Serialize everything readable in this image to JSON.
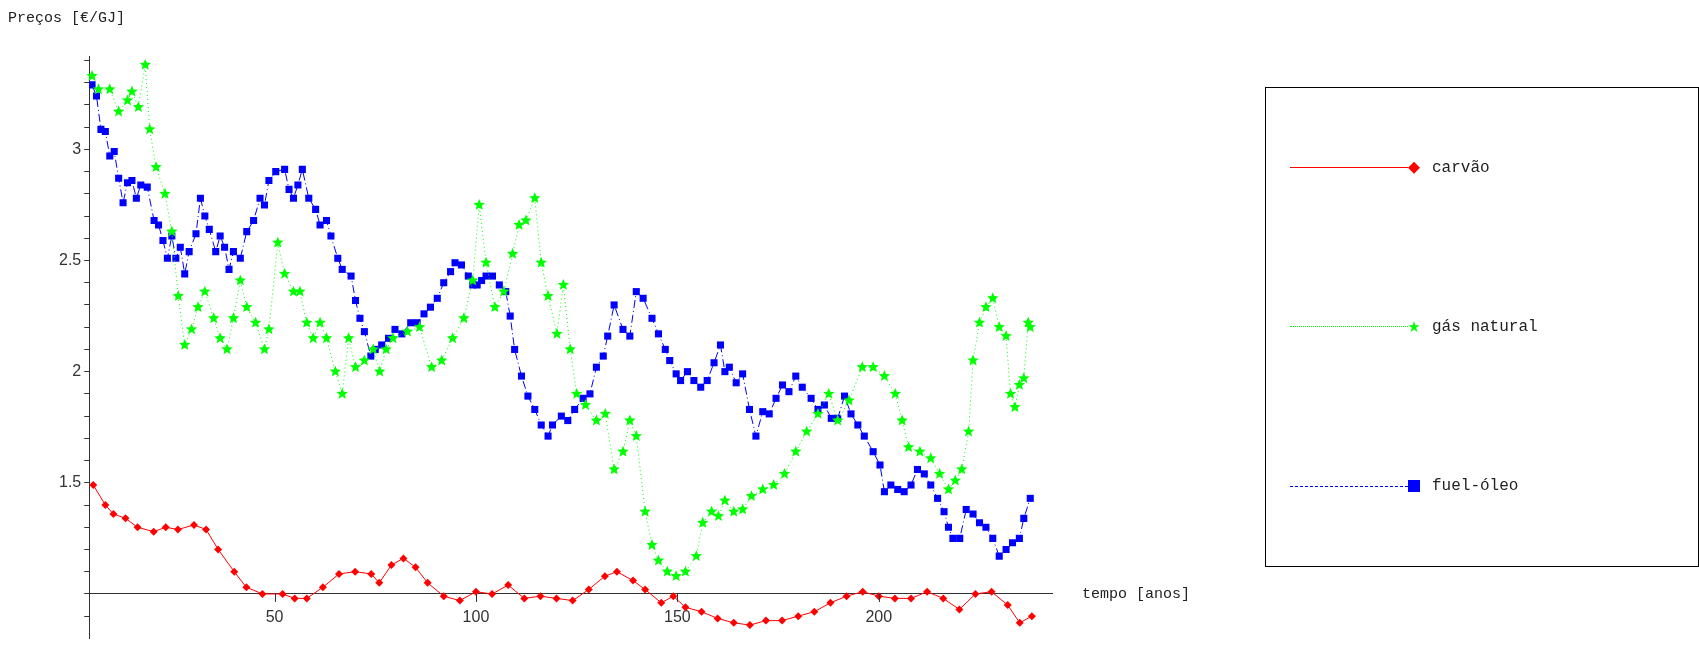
{
  "chart_data": {
    "type": "line",
    "xlabel": "tempo [anos]",
    "ylabel": "Preços [€/GJ]",
    "legend": "right",
    "xlim": [
      4,
      243
    ],
    "ylim": [
      0.8,
      3.42
    ],
    "xticks": [
      50,
      100,
      150,
      200
    ],
    "yticks": [
      {
        "value": 0.9,
        "label": null
      },
      {
        "value": 1,
        "label": null
      },
      {
        "value": 1.1,
        "label": null
      },
      {
        "value": 1.2,
        "label": null
      },
      {
        "value": 1.3,
        "label": null
      },
      {
        "value": 1.4,
        "label": null
      },
      1.5,
      {
        "value": 1.6,
        "label": null
      },
      {
        "value": 1.7,
        "label": null
      },
      {
        "value": 1.8,
        "label": null
      },
      {
        "value": 1.9,
        "label": null
      },
      2,
      {
        "value": 2.1,
        "label": null
      },
      {
        "value": 2.2,
        "label": null
      },
      {
        "value": 2.3,
        "label": null
      },
      {
        "value": 2.4,
        "label": null
      },
      2.5,
      {
        "value": 2.6,
        "label": null
      },
      {
        "value": 2.7,
        "label": null
      },
      {
        "value": 2.8,
        "label": null
      },
      {
        "value": 2.9,
        "label": null
      },
      3,
      {
        "value": 3.1,
        "label": null
      },
      {
        "value": 3.2,
        "label": null
      },
      {
        "value": 3.3,
        "label": null
      },
      {
        "value": 3.4,
        "label": null
      }
    ],
    "series": [
      {
        "name": "carvão",
        "color": "#ff0000",
        "marker": "diamond",
        "line_style": "solid",
        "x": [
          5,
          8,
          10,
          13,
          16,
          20,
          23,
          26,
          30,
          33,
          36,
          40,
          43,
          47,
          52,
          55,
          58,
          62,
          66,
          70,
          74,
          76,
          79,
          82,
          85,
          88,
          92,
          96,
          100,
          104,
          108,
          112,
          116,
          120,
          124,
          128,
          132,
          135,
          139,
          142,
          146,
          149,
          152,
          156,
          160,
          164,
          168,
          172,
          176,
          180,
          184,
          188,
          192,
          196,
          200,
          204,
          208,
          212,
          216,
          220,
          224,
          228,
          232,
          235,
          238
        ],
        "values": [
          1.49,
          1.4,
          1.36,
          1.34,
          1.3,
          1.28,
          1.3,
          1.29,
          1.31,
          1.29,
          1.2,
          1.1,
          1.03,
          1.0,
          1.0,
          0.98,
          0.98,
          1.03,
          1.09,
          1.1,
          1.09,
          1.05,
          1.13,
          1.16,
          1.12,
          1.05,
          0.99,
          0.97,
          1.01,
          1.0,
          1.04,
          0.98,
          0.99,
          0.98,
          0.97,
          1.02,
          1.08,
          1.1,
          1.06,
          1.02,
          0.96,
          0.99,
          0.94,
          0.92,
          0.89,
          0.87,
          0.86,
          0.88,
          0.88,
          0.9,
          0.92,
          0.96,
          0.99,
          1.01,
          0.99,
          0.98,
          0.98,
          1.01,
          0.98,
          0.93,
          1.0,
          1.01,
          0.95,
          0.87,
          0.9
        ]
      },
      {
        "name": "gás natural",
        "color": "#00ff00",
        "marker": "star",
        "line_style": "dotted",
        "x": [
          4.7,
          6.3,
          9.1,
          11.3,
          13.5,
          14.6,
          16.2,
          17.9,
          19.0,
          20.6,
          22.8,
          24.5,
          26.1,
          27.7,
          29.4,
          31.0,
          32.7,
          34.9,
          36.5,
          38.2,
          39.8,
          41.5,
          43.1,
          45.3,
          47.5,
          48.6,
          50.8,
          52.5,
          54.7,
          56.3,
          58.0,
          59.6,
          61.3,
          62.9,
          65.1,
          66.8,
          68.4,
          70.1,
          72.3,
          74.5,
          76.1,
          77.7,
          79.4,
          83,
          86,
          89,
          91.5,
          94.2,
          97.0,
          99.2,
          100.8,
          102.5,
          104.7,
          106.9,
          109.1,
          110.7,
          112.4,
          114.6,
          116.2,
          117.9,
          120.1,
          121.7,
          123.4,
          125.0,
          127.2,
          129.9,
          132.1,
          134.3,
          136.5,
          138.2,
          139.8,
          142.0,
          143.7,
          145.3,
          147.5,
          149.7,
          152.0,
          154.7,
          156.3,
          158.5,
          160.2,
          161.8,
          164.0,
          166.2,
          168.4,
          171.2,
          173.9,
          176.6,
          179.4,
          182.1,
          184.9,
          187.6,
          189.8,
          192.6,
          195.9,
          198.6,
          201.4,
          204.1,
          205.8,
          207.4,
          210.2,
          212.9,
          215.1,
          217.3,
          219.0,
          220.6,
          222.3,
          223.4,
          225.0,
          226.6,
          228.3,
          229.9,
          231.6,
          232.7,
          233.8,
          234.9,
          236.0,
          237.1,
          237.6
        ],
        "values": [
          3.33,
          3.27,
          3.27,
          3.17,
          3.22,
          3.26,
          3.19,
          3.38,
          3.09,
          2.92,
          2.8,
          2.63,
          2.34,
          2.12,
          2.19,
          2.29,
          2.36,
          2.24,
          2.15,
          2.1,
          2.24,
          2.41,
          2.29,
          2.22,
          2.1,
          2.19,
          2.58,
          2.44,
          2.36,
          2.36,
          2.22,
          2.15,
          2.22,
          2.15,
          2.0,
          1.9,
          2.15,
          2.02,
          2.05,
          2.1,
          2.0,
          2.1,
          2.15,
          2.18,
          2.2,
          2.02,
          2.05,
          2.15,
          2.24,
          2.41,
          2.75,
          2.49,
          2.29,
          2.36,
          2.53,
          2.66,
          2.68,
          2.78,
          2.49,
          2.34,
          2.17,
          2.39,
          2.1,
          1.9,
          1.85,
          1.78,
          1.81,
          1.56,
          1.64,
          1.78,
          1.71,
          1.37,
          1.22,
          1.15,
          1.1,
          1.08,
          1.1,
          1.17,
          1.32,
          1.37,
          1.35,
          1.42,
          1.37,
          1.38,
          1.44,
          1.47,
          1.49,
          1.54,
          1.64,
          1.73,
          1.81,
          1.9,
          1.78,
          1.87,
          2.02,
          2.02,
          1.98,
          1.9,
          1.78,
          1.66,
          1.64,
          1.61,
          1.54,
          1.47,
          1.51,
          1.56,
          1.73,
          2.05,
          2.22,
          2.29,
          2.33,
          2.2,
          2.16,
          1.9,
          1.84,
          1.94,
          1.97,
          2.22,
          2.2
        ]
      },
      {
        "name": "fuel-óleo",
        "color": "#0000ff",
        "marker": "square",
        "line_style": "dashed",
        "x": [
          4.7,
          5.8,
          6.9,
          8.0,
          9.1,
          10.2,
          11.3,
          12.4,
          13.5,
          14.6,
          15.7,
          16.8,
          18.4,
          20.1,
          21.2,
          22.3,
          23.4,
          24.5,
          25.5,
          26.6,
          27.7,
          28.8,
          30.5,
          31.6,
          32.7,
          33.8,
          35.4,
          36.5,
          37.6,
          38.7,
          39.8,
          41.5,
          43.1,
          44.8,
          46.4,
          47.5,
          48.6,
          50.3,
          52.5,
          53.6,
          54.7,
          55.8,
          56.9,
          58.5,
          60.2,
          61.3,
          62.9,
          64.0,
          65.7,
          66.8,
          69.0,
          70.1,
          71.2,
          72.3,
          73.9,
          75.0,
          76.6,
          78.3,
          79.9,
          81.6,
          83.8,
          85.4,
          87.1,
          88.7,
          90.4,
          92.0,
          93.7,
          94.8,
          96.4,
          98.1,
          99.2,
          100.3,
          101.4,
          102.5,
          104.1,
          105.8,
          107.4,
          108.5,
          109.6,
          111.3,
          112.9,
          114.6,
          116.2,
          117.9,
          119.0,
          121.2,
          122.8,
          124.5,
          126.6,
          128.3,
          129.9,
          131.6,
          132.7,
          134.3,
          136.5,
          138.2,
          139.8,
          141.5,
          143.7,
          145.3,
          147.0,
          148.1,
          149.7,
          150.8,
          152.5,
          154.1,
          155.8,
          157.4,
          159.1,
          160.7,
          161.8,
          162.9,
          164.6,
          166.2,
          167.9,
          169.5,
          171.2,
          172.8,
          174.5,
          176.1,
          177.7,
          179.4,
          181.0,
          183.2,
          184.9,
          186.5,
          188.2,
          189.8,
          191.5,
          193.1,
          194.8,
          196.4,
          198.6,
          200.3,
          201.4,
          203.0,
          204.7,
          206.3,
          208.0,
          209.6,
          211.3,
          212.9,
          214.6,
          216.2,
          217.3,
          218.4,
          220.1,
          221.7,
          223.4,
          225.0,
          226.6,
          228.3,
          229.9,
          231.6,
          233.2,
          234.9,
          236.0,
          237.6
        ],
        "values": [
          3.29,
          3.24,
          3.09,
          3.08,
          2.97,
          2.99,
          2.87,
          2.76,
          2.85,
          2.86,
          2.78,
          2.84,
          2.83,
          2.68,
          2.66,
          2.59,
          2.51,
          2.61,
          2.51,
          2.56,
          2.44,
          2.54,
          2.62,
          2.78,
          2.7,
          2.64,
          2.54,
          2.61,
          2.56,
          2.46,
          2.54,
          2.51,
          2.63,
          2.68,
          2.78,
          2.75,
          2.86,
          2.9,
          2.91,
          2.82,
          2.78,
          2.84,
          2.91,
          2.78,
          2.73,
          2.66,
          2.68,
          2.61,
          2.51,
          2.46,
          2.43,
          2.32,
          2.24,
          2.18,
          2.07,
          2.1,
          2.12,
          2.15,
          2.19,
          2.17,
          2.22,
          2.22,
          2.26,
          2.29,
          2.33,
          2.4,
          2.45,
          2.49,
          2.48,
          2.43,
          2.39,
          2.39,
          2.41,
          2.43,
          2.43,
          2.39,
          2.36,
          2.25,
          2.1,
          1.98,
          1.89,
          1.83,
          1.76,
          1.71,
          1.76,
          1.8,
          1.78,
          1.83,
          1.88,
          1.9,
          2.02,
          2.07,
          2.16,
          2.3,
          2.19,
          2.16,
          2.36,
          2.33,
          2.24,
          2.17,
          2.1,
          2.05,
          1.99,
          1.96,
          2.0,
          1.96,
          1.93,
          1.96,
          2.04,
          2.12,
          2.0,
          2.02,
          1.95,
          1.99,
          1.83,
          1.71,
          1.82,
          1.81,
          1.88,
          1.94,
          1.91,
          1.98,
          1.93,
          1.88,
          1.83,
          1.85,
          1.79,
          1.79,
          1.89,
          1.81,
          1.76,
          1.71,
          1.64,
          1.58,
          1.46,
          1.49,
          1.47,
          1.46,
          1.49,
          1.56,
          1.54,
          1.49,
          1.43,
          1.37,
          1.3,
          1.25,
          1.25,
          1.38,
          1.36,
          1.32,
          1.3,
          1.25,
          1.17,
          1.2,
          1.23,
          1.25,
          1.34,
          1.43
        ]
      }
    ]
  }
}
